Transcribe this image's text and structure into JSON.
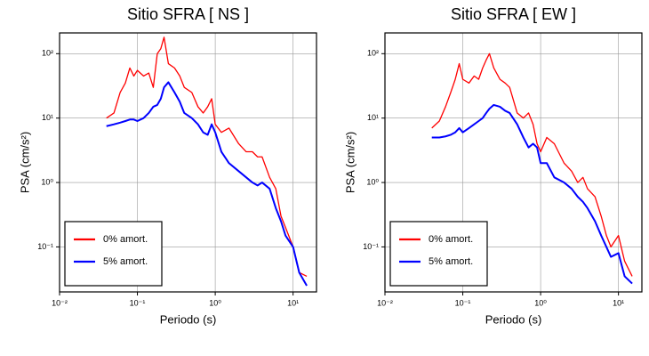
{
  "chart_data": [
    {
      "type": "line",
      "title": "Sitio SFRA [ NS ]",
      "x_label": "Periodo (s)",
      "y_label": "PSA (cm/s²)",
      "xscale": "log",
      "yscale": "log",
      "grid": true,
      "legend": "lower left",
      "xlim": [
        0.01,
        20
      ],
      "ylim": [
        0.02,
        210
      ],
      "xticks": [
        {
          "value": 0.01,
          "label": "10⁻²"
        },
        {
          "value": 0.1,
          "label": "10⁻¹"
        },
        {
          "value": 1,
          "label": "10⁰"
        },
        {
          "value": 10,
          "label": "10¹"
        }
      ],
      "yticks": [
        {
          "value": 0.1,
          "label": "10⁻¹"
        },
        {
          "value": 1,
          "label": "10⁰"
        },
        {
          "value": 10,
          "label": "10¹"
        },
        {
          "value": 100,
          "label": "10²"
        }
      ],
      "x": [
        0.04,
        0.05,
        0.06,
        0.07,
        0.08,
        0.09,
        0.1,
        0.12,
        0.14,
        0.16,
        0.18,
        0.2,
        0.22,
        0.25,
        0.3,
        0.35,
        0.4,
        0.5,
        0.6,
        0.7,
        0.8,
        0.9,
        1,
        1.2,
        1.5,
        2,
        2.5,
        3,
        3.5,
        4,
        5,
        6,
        7,
        8,
        10,
        12,
        15
      ],
      "series": [
        {
          "name": "0% amort.",
          "color": "#ff0000",
          "values": [
            10,
            12,
            25,
            35,
            60,
            45,
            55,
            45,
            50,
            30,
            100,
            120,
            180,
            70,
            60,
            45,
            30,
            25,
            15,
            12,
            15,
            20,
            8,
            6,
            7,
            4,
            3,
            3,
            2.5,
            2.5,
            1.2,
            0.8,
            0.3,
            0.2,
            0.1,
            0.04,
            0.035
          ]
        },
        {
          "name": "5% amort.",
          "color": "#0000ff",
          "values": [
            7.5,
            8,
            8.5,
            9,
            9.5,
            9.5,
            9,
            10,
            12,
            15,
            16,
            20,
            30,
            36,
            25,
            18,
            12,
            10,
            8,
            6,
            5.5,
            8,
            6,
            3,
            2,
            1.5,
            1.2,
            1,
            0.9,
            1,
            0.8,
            0.4,
            0.25,
            0.15,
            0.1,
            0.04,
            0.025
          ]
        }
      ]
    },
    {
      "type": "line",
      "title": "Sitio SFRA [ EW ]",
      "x_label": "Periodo (s)",
      "y_label": "PSA (cm/s²)",
      "xscale": "log",
      "yscale": "log",
      "grid": true,
      "legend": "lower left",
      "xlim": [
        0.01,
        20
      ],
      "ylim": [
        0.02,
        210
      ],
      "xticks": [
        {
          "value": 0.01,
          "label": "10⁻²"
        },
        {
          "value": 0.1,
          "label": "10⁻¹"
        },
        {
          "value": 1,
          "label": "10⁰"
        },
        {
          "value": 10,
          "label": "10¹"
        }
      ],
      "yticks": [
        {
          "value": 0.1,
          "label": "10⁻¹"
        },
        {
          "value": 1,
          "label": "10⁰"
        },
        {
          "value": 10,
          "label": "10¹"
        },
        {
          "value": 100,
          "label": "10²"
        }
      ],
      "x": [
        0.04,
        0.05,
        0.06,
        0.07,
        0.08,
        0.09,
        0.1,
        0.12,
        0.14,
        0.16,
        0.18,
        0.2,
        0.22,
        0.25,
        0.3,
        0.35,
        0.4,
        0.5,
        0.6,
        0.7,
        0.8,
        0.9,
        1,
        1.2,
        1.5,
        2,
        2.5,
        3,
        3.5,
        4,
        5,
        6,
        7,
        8,
        10,
        12,
        15
      ],
      "series": [
        {
          "name": "0% amort.",
          "color": "#ff0000",
          "values": [
            7,
            9,
            15,
            25,
            40,
            70,
            40,
            35,
            45,
            40,
            60,
            80,
            100,
            60,
            40,
            35,
            30,
            12,
            10,
            12,
            8,
            4,
            3,
            5,
            4,
            2,
            1.5,
            1,
            1.2,
            0.8,
            0.6,
            0.3,
            0.15,
            0.1,
            0.15,
            0.06,
            0.035
          ]
        },
        {
          "name": "5% amort.",
          "color": "#0000ff",
          "values": [
            5,
            5,
            5.2,
            5.5,
            6,
            7,
            6,
            7,
            8,
            9,
            10,
            12,
            14,
            16,
            15,
            13,
            12,
            8,
            5,
            3.5,
            4,
            3.5,
            2,
            2,
            1.2,
            1,
            0.8,
            0.6,
            0.5,
            0.4,
            0.25,
            0.15,
            0.1,
            0.07,
            0.08,
            0.035,
            0.027
          ]
        }
      ]
    }
  ]
}
